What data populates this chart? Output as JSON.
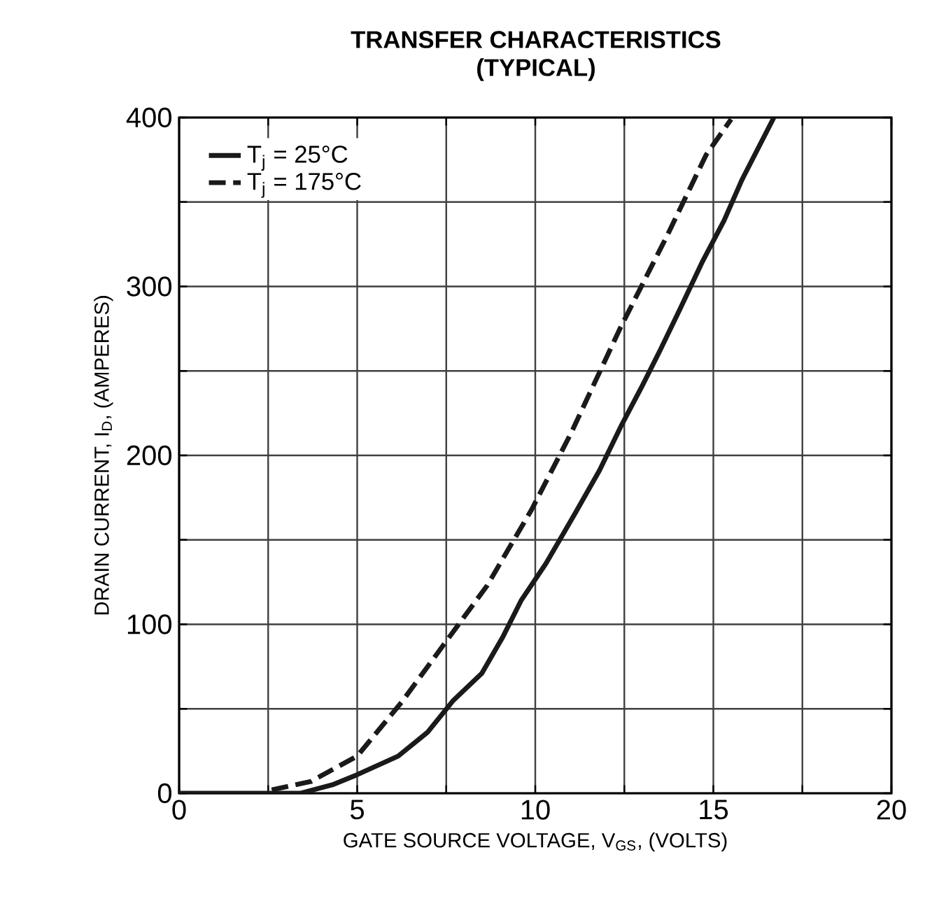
{
  "chart_data": {
    "type": "line",
    "title": "TRANSFER CHARACTERISTICS",
    "subtitle": "(TYPICAL)",
    "xlabel": "GATE SOURCE VOLTAGE, V$_{GS}$, (VOLTS)",
    "ylabel": "DRAIN CURRENT, I$_{D}$, (AMPERES)",
    "xlim": [
      0,
      20
    ],
    "ylim": [
      0,
      400
    ],
    "xticks": [
      0,
      {
        "value": 2.5,
        "label": null
      },
      5,
      {
        "value": 7.5,
        "label": null
      },
      10,
      {
        "value": 12.5,
        "label": null
      },
      15,
      {
        "value": 17.5,
        "label": null
      },
      20
    ],
    "yticks": [
      0,
      {
        "value": 50,
        "label": null
      },
      100,
      {
        "value": 150,
        "label": null
      },
      200,
      {
        "value": 250,
        "label": null
      },
      300,
      {
        "value": 350,
        "label": null
      },
      400
    ],
    "grid": true,
    "legend": "top left",
    "marker": "none",
    "series": [
      {
        "name": "T$_{j}$ = 25°C",
        "color": "#1a1a1a",
        "line_style": "solid",
        "x": [
          0,
          1.5,
          3.4,
          4.3,
          5.0,
          6.15,
          6.97,
          7.7,
          8.5,
          9.1,
          9.6,
          10.3,
          11.1,
          11.8,
          12.4,
          13.0,
          13.5,
          14.05,
          14.7,
          15.3,
          15.8,
          16.7
        ],
        "values": [
          0,
          0,
          0,
          5,
          11,
          22,
          36,
          55,
          71,
          93,
          114,
          136,
          165,
          191,
          217,
          241,
          262,
          286,
          315,
          339,
          363,
          400
        ]
      },
      {
        "name": "T$_{j}$ = 175°C",
        "color": "#1a1a1a",
        "line_style": "dashed",
        "x": [
          2.6,
          3.7,
          5.0,
          6.25,
          7.5,
          8.65,
          9.9,
          11.0,
          12.4,
          13.7,
          14.8,
          15.5
        ],
        "values": [
          2,
          7,
          22,
          54,
          90,
          123,
          168,
          213,
          276,
          330,
          378,
          399
        ]
      }
    ]
  }
}
